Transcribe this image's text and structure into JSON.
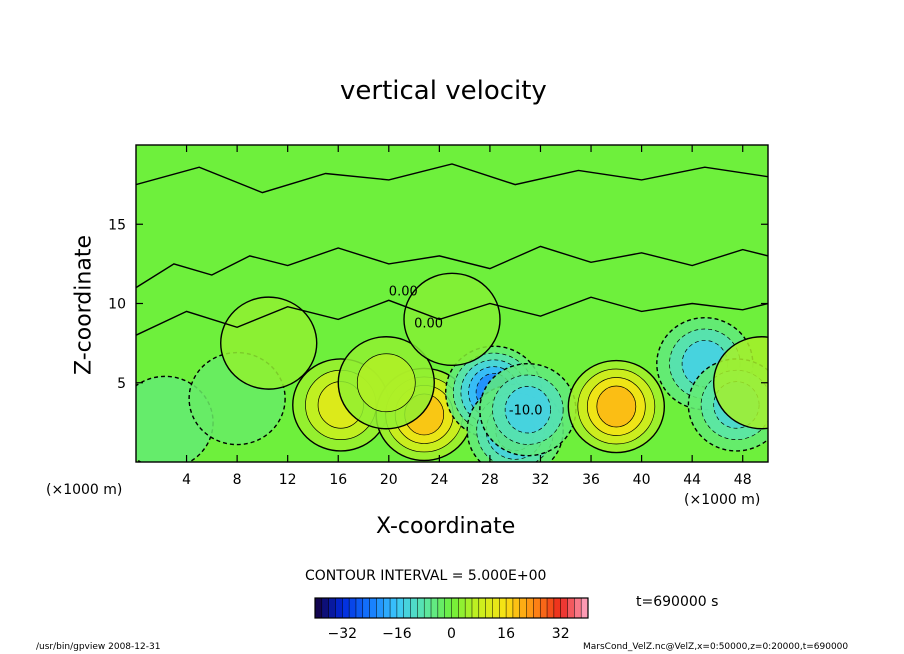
{
  "chart_data": {
    "type": "heatmap",
    "title": "vertical velocity",
    "xlabel": "X-coordinate",
    "ylabel": "Z-coordinate",
    "x_unit": "(×1000 m)",
    "y_unit": "(×1000 m)",
    "xlim": [
      0,
      50
    ],
    "ylim": [
      0,
      20
    ],
    "x_ticks": [
      4,
      8,
      12,
      16,
      20,
      24,
      28,
      32,
      36,
      40,
      44,
      48
    ],
    "y_ticks": [
      5,
      10,
      15
    ],
    "contour_label": "0.00",
    "contour_label_neg": "-10.0",
    "contour_interval_text": "CONTOUR INTERVAL = 5.000E+00",
    "time_text": "t=690000 s",
    "colorbar": {
      "min": -40,
      "max": 40,
      "tick_values": [
        -32,
        -16,
        0,
        16,
        32
      ],
      "tick_labels": [
        "−32",
        "−16",
        "0",
        "16",
        "32"
      ]
    },
    "features": [
      {
        "x": 2.3,
        "z": 2.5,
        "w": -4
      },
      {
        "x": 8.0,
        "z": 4.0,
        "w": -3
      },
      {
        "x": 16.2,
        "z": 3.6,
        "w": 12
      },
      {
        "x": 22.8,
        "z": 3.0,
        "w": 19
      },
      {
        "x": 19.8,
        "z": 5.0,
        "w": 6
      },
      {
        "x": 28.3,
        "z": 4.4,
        "w": -22
      },
      {
        "x": 30.0,
        "z": 2.0,
        "w": -18
      },
      {
        "x": 31.0,
        "z": 3.3,
        "w": -14
      },
      {
        "x": 38.0,
        "z": 3.5,
        "w": 20
      },
      {
        "x": 45.0,
        "z": 6.2,
        "w": -14
      },
      {
        "x": 47.5,
        "z": 3.6,
        "w": -12
      },
      {
        "x": 49.5,
        "z": 5.0,
        "w": 5
      },
      {
        "x": 10.5,
        "z": 7.5,
        "w": 3
      },
      {
        "x": 25.0,
        "z": 9.0,
        "w": 2
      }
    ]
  },
  "footer": {
    "left_text": "/usr/bin/gpview  2008-12-31",
    "right_text": "MarsCond_VelZ.nc@VelZ,x=0:50000,z=0:20000,t=690000"
  }
}
